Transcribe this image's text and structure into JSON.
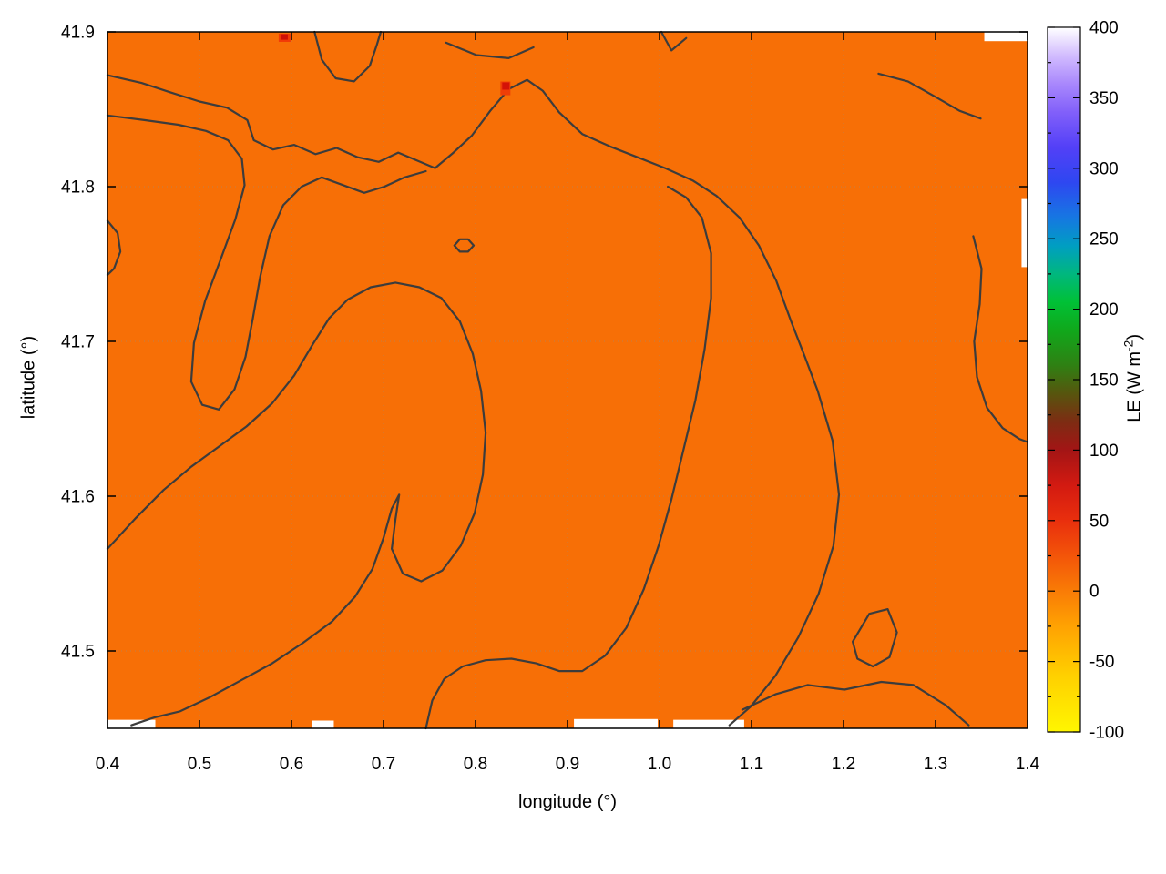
{
  "chart_data": {
    "type": "heatmap",
    "title": "",
    "xlabel": "longitude (°)",
    "ylabel": "latitude (°)",
    "x_range": [
      0.4,
      1.4
    ],
    "y_range": [
      41.45,
      41.9
    ],
    "grid": true,
    "field_fill_color": "#f76f06",
    "field_value_approx_wm2": 10,
    "border_color": "#000000",
    "contour_color": "#3c3c3c",
    "contour_width": 2.2,
    "x_ticks": [
      {
        "v": 0.4,
        "label": "0.4"
      },
      {
        "v": 0.5,
        "label": "0.5"
      },
      {
        "v": 0.6,
        "label": "0.6"
      },
      {
        "v": 0.7,
        "label": "0.7"
      },
      {
        "v": 0.8,
        "label": "0.8"
      },
      {
        "v": 0.9,
        "label": "0.9"
      },
      {
        "v": 1.0,
        "label": "1.0"
      },
      {
        "v": 1.1,
        "label": "1.1"
      },
      {
        "v": 1.2,
        "label": "1.2"
      },
      {
        "v": 1.3,
        "label": "1.3"
      },
      {
        "v": 1.4,
        "label": "1.4"
      }
    ],
    "y_ticks": [
      {
        "v": 41.5,
        "label": "41.5"
      },
      {
        "v": 41.6,
        "label": "41.6"
      },
      {
        "v": 41.7,
        "label": "41.7"
      },
      {
        "v": 41.8,
        "label": "41.8"
      },
      {
        "v": 41.9,
        "label": "41.9"
      }
    ],
    "colorbar": {
      "label_main": "LE (W m",
      "label_sup": "-2",
      "label_close": ")",
      "range": [
        -100,
        400
      ],
      "minor_step": 25,
      "ticks": [
        {
          "v": -100,
          "label": "-100"
        },
        {
          "v": -50,
          "label": "-50"
        },
        {
          "v": 0,
          "label": "0"
        },
        {
          "v": 50,
          "label": "50"
        },
        {
          "v": 100,
          "label": "100"
        },
        {
          "v": 150,
          "label": "150"
        },
        {
          "v": 200,
          "label": "200"
        },
        {
          "v": 250,
          "label": "250"
        },
        {
          "v": 300,
          "label": "300"
        },
        {
          "v": 350,
          "label": "350"
        },
        {
          "v": 400,
          "label": "400"
        }
      ],
      "stops": [
        {
          "v": -100,
          "c": "#fff600"
        },
        {
          "v": -60,
          "c": "#ffd000"
        },
        {
          "v": -25,
          "c": "#ffa202"
        },
        {
          "v": 0,
          "c": "#f97c06"
        },
        {
          "v": 25,
          "c": "#f35509"
        },
        {
          "v": 50,
          "c": "#e92f0d"
        },
        {
          "v": 75,
          "c": "#d31a11"
        },
        {
          "v": 100,
          "c": "#a31515"
        },
        {
          "v": 120,
          "c": "#7d2c13"
        },
        {
          "v": 140,
          "c": "#57550e"
        },
        {
          "v": 160,
          "c": "#2f8013"
        },
        {
          "v": 185,
          "c": "#10a81b"
        },
        {
          "v": 205,
          "c": "#00c136"
        },
        {
          "v": 225,
          "c": "#00b77e"
        },
        {
          "v": 245,
          "c": "#009ec2"
        },
        {
          "v": 265,
          "c": "#1677e2"
        },
        {
          "v": 290,
          "c": "#2e47f1"
        },
        {
          "v": 315,
          "c": "#5340f7"
        },
        {
          "v": 340,
          "c": "#8260fa"
        },
        {
          "v": 360,
          "c": "#a988fc"
        },
        {
          "v": 380,
          "c": "#d2bcfe"
        },
        {
          "v": 400,
          "c": "#ffffff"
        }
      ]
    },
    "contour_lines": [
      [
        [
          0.4,
          41.872
        ],
        [
          0.437,
          41.867
        ],
        [
          0.468,
          41.861
        ],
        [
          0.5,
          41.855
        ],
        [
          0.53,
          41.851
        ],
        [
          0.552,
          41.843
        ],
        [
          0.559,
          41.83
        ],
        [
          0.58,
          41.824
        ],
        [
          0.603,
          41.827
        ],
        [
          0.626,
          41.821
        ],
        [
          0.649,
          41.825
        ],
        [
          0.672,
          41.819
        ],
        [
          0.695,
          41.816
        ],
        [
          0.716,
          41.822
        ],
        [
          0.736,
          41.817
        ],
        [
          0.756,
          41.812
        ],
        [
          0.776,
          41.822
        ],
        [
          0.796,
          41.833
        ],
        [
          0.816,
          41.849
        ],
        [
          0.836,
          41.863
        ],
        [
          0.856,
          41.869
        ],
        [
          0.873,
          41.862
        ],
        [
          0.891,
          41.848
        ],
        [
          0.916,
          41.834
        ],
        [
          0.946,
          41.826
        ],
        [
          0.976,
          41.819
        ],
        [
          1.006,
          41.812
        ],
        [
          1.036,
          41.804
        ],
        [
          1.062,
          41.794
        ],
        [
          1.087,
          41.78
        ],
        [
          1.108,
          41.762
        ],
        [
          1.127,
          41.739
        ],
        [
          1.143,
          41.713
        ],
        [
          1.158,
          41.69
        ],
        [
          1.172,
          41.668
        ],
        [
          1.188,
          41.636
        ],
        [
          1.195,
          41.601
        ],
        [
          1.189,
          41.568
        ],
        [
          1.173,
          41.537
        ],
        [
          1.151,
          41.509
        ],
        [
          1.126,
          41.484
        ],
        [
          1.099,
          41.464
        ],
        [
          1.076,
          41.452
        ]
      ],
      [
        [
          0.4,
          41.846
        ],
        [
          0.44,
          41.843
        ],
        [
          0.477,
          41.84
        ],
        [
          0.507,
          41.836
        ],
        [
          0.531,
          41.83
        ],
        [
          0.546,
          41.818
        ],
        [
          0.549,
          41.801
        ],
        [
          0.539,
          41.779
        ],
        [
          0.523,
          41.753
        ],
        [
          0.506,
          41.726
        ],
        [
          0.494,
          41.699
        ],
        [
          0.491,
          41.674
        ],
        [
          0.503,
          41.659
        ],
        [
          0.521,
          41.656
        ],
        [
          0.538,
          41.669
        ],
        [
          0.55,
          41.69
        ],
        [
          0.558,
          41.715
        ],
        [
          0.566,
          41.742
        ],
        [
          0.576,
          41.768
        ],
        [
          0.591,
          41.788
        ],
        [
          0.611,
          41.8
        ],
        [
          0.633,
          41.806
        ],
        [
          0.656,
          41.801
        ],
        [
          0.679,
          41.796
        ],
        [
          0.701,
          41.8
        ],
        [
          0.723,
          41.806
        ],
        [
          0.746,
          41.81
        ]
      ],
      [
        [
          0.4,
          41.566
        ],
        [
          0.431,
          41.586
        ],
        [
          0.461,
          41.604
        ],
        [
          0.491,
          41.619
        ],
        [
          0.521,
          41.632
        ],
        [
          0.551,
          41.645
        ],
        [
          0.579,
          41.66
        ],
        [
          0.603,
          41.678
        ],
        [
          0.623,
          41.698
        ],
        [
          0.641,
          41.715
        ],
        [
          0.661,
          41.727
        ],
        [
          0.686,
          41.735
        ],
        [
          0.713,
          41.738
        ],
        [
          0.739,
          41.735
        ],
        [
          0.763,
          41.728
        ],
        [
          0.783,
          41.713
        ],
        [
          0.797,
          41.692
        ],
        [
          0.806,
          41.668
        ],
        [
          0.811,
          41.641
        ],
        [
          0.808,
          41.614
        ],
        [
          0.799,
          41.589
        ],
        [
          0.784,
          41.568
        ],
        [
          0.764,
          41.552
        ],
        [
          0.741,
          41.545
        ],
        [
          0.721,
          41.55
        ],
        [
          0.709,
          41.566
        ],
        [
          0.713,
          41.585
        ],
        [
          0.717,
          41.601
        ],
        [
          0.709,
          41.592
        ],
        [
          0.7,
          41.573
        ],
        [
          0.688,
          41.553
        ],
        [
          0.669,
          41.535
        ],
        [
          0.644,
          41.519
        ],
        [
          0.612,
          41.505
        ],
        [
          0.579,
          41.492
        ],
        [
          0.545,
          41.481
        ],
        [
          0.511,
          41.47
        ],
        [
          0.479,
          41.461
        ],
        [
          0.451,
          41.457
        ],
        [
          0.426,
          41.452
        ]
      ],
      [
        [
          0.746,
          41.45
        ],
        [
          0.753,
          41.468
        ],
        [
          0.766,
          41.482
        ],
        [
          0.786,
          41.49
        ],
        [
          0.811,
          41.494
        ],
        [
          0.839,
          41.495
        ],
        [
          0.866,
          41.492
        ],
        [
          0.891,
          41.487
        ],
        [
          0.916,
          41.487
        ],
        [
          0.941,
          41.497
        ],
        [
          0.964,
          41.515
        ],
        [
          0.983,
          41.54
        ],
        [
          0.999,
          41.568
        ],
        [
          1.013,
          41.598
        ],
        [
          1.026,
          41.63
        ],
        [
          1.039,
          41.662
        ],
        [
          1.049,
          41.695
        ],
        [
          1.056,
          41.728
        ],
        [
          1.056,
          41.757
        ],
        [
          1.046,
          41.78
        ],
        [
          1.029,
          41.793
        ],
        [
          1.009,
          41.8
        ]
      ],
      [
        [
          1.341,
          41.768
        ],
        [
          1.35,
          41.747
        ],
        [
          1.348,
          41.724
        ],
        [
          1.342,
          41.7
        ],
        [
          1.345,
          41.677
        ],
        [
          1.356,
          41.657
        ],
        [
          1.373,
          41.644
        ],
        [
          1.391,
          41.637
        ],
        [
          1.4,
          41.635
        ]
      ],
      [
        [
          1.238,
          41.873
        ],
        [
          1.27,
          41.868
        ],
        [
          1.3,
          41.858
        ],
        [
          1.326,
          41.849
        ],
        [
          1.349,
          41.844
        ]
      ],
      [
        [
          0.625,
          41.9
        ],
        [
          0.633,
          41.882
        ],
        [
          0.648,
          41.87
        ],
        [
          0.668,
          41.868
        ],
        [
          0.685,
          41.878
        ],
        [
          0.693,
          41.892
        ],
        [
          0.697,
          41.9
        ]
      ],
      [
        [
          0.768,
          41.893
        ],
        [
          0.801,
          41.885
        ],
        [
          0.836,
          41.883
        ],
        [
          0.863,
          41.89
        ]
      ],
      [
        [
          1.002,
          41.9
        ],
        [
          1.013,
          41.888
        ],
        [
          1.029,
          41.896
        ]
      ],
      [
        [
          0.4,
          41.778
        ],
        [
          0.411,
          41.77
        ],
        [
          0.414,
          41.758
        ],
        [
          0.407,
          41.747
        ],
        [
          0.4,
          41.743
        ]
      ],
      [
        [
          1.21,
          41.506
        ],
        [
          1.228,
          41.524
        ],
        [
          1.248,
          41.527
        ],
        [
          1.258,
          41.512
        ],
        [
          1.25,
          41.496
        ],
        [
          1.232,
          41.49
        ],
        [
          1.215,
          41.495
        ],
        [
          1.21,
          41.506
        ]
      ],
      [
        [
          1.09,
          41.462
        ],
        [
          1.126,
          41.472
        ],
        [
          1.161,
          41.478
        ],
        [
          1.201,
          41.475
        ],
        [
          1.241,
          41.48
        ],
        [
          1.276,
          41.478
        ],
        [
          1.311,
          41.465
        ],
        [
          1.336,
          41.452
        ]
      ],
      [
        [
          0.777,
          41.762
        ],
        [
          0.783,
          41.766
        ],
        [
          0.792,
          41.766
        ],
        [
          0.798,
          41.762
        ],
        [
          0.792,
          41.758
        ],
        [
          0.783,
          41.758
        ],
        [
          0.777,
          41.762
        ]
      ]
    ],
    "hotspots": [
      {
        "lon": 0.5925,
        "lat": 41.8962,
        "w": 13,
        "h": 9,
        "color": "#f23a06"
      },
      {
        "lon": 0.5925,
        "lat": 41.8967,
        "w": 7,
        "h": 6,
        "color": "#ce1006"
      },
      {
        "lon": 0.8325,
        "lat": 41.8635,
        "w": 11,
        "h": 15,
        "color": "#ef3e07"
      },
      {
        "lon": 0.833,
        "lat": 41.865,
        "w": 8,
        "h": 8,
        "color": "#d41207"
      }
    ],
    "nodata_gaps": [
      {
        "x0": 0.907,
        "x1": 0.998,
        "lat0": 41.45,
        "lat1": 41.456
      },
      {
        "x0": 1.015,
        "x1": 1.092,
        "lat0": 41.45,
        "lat1": 41.4555
      },
      {
        "x0": 0.4,
        "x1": 0.452,
        "lat0": 41.45,
        "lat1": 41.4555
      },
      {
        "x0": 1.3935,
        "x1": 1.4,
        "lat0": 41.748,
        "lat1": 41.792
      },
      {
        "x0": 1.353,
        "x1": 1.4,
        "lat0": 41.894,
        "lat1": 41.9
      },
      {
        "x0": 0.622,
        "x1": 0.646,
        "lat0": 41.45,
        "lat1": 41.455
      }
    ]
  }
}
